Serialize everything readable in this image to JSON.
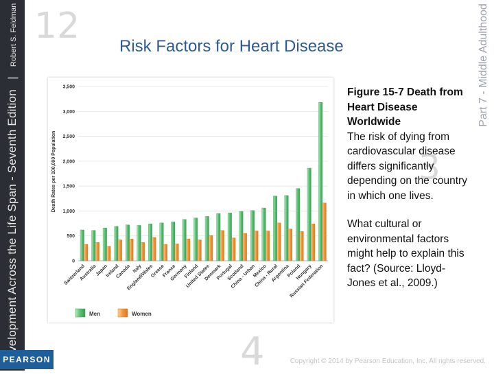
{
  "book": {
    "title": "Development Across the Life Span - Seventh Edition",
    "author": "Robert S. Feldman",
    "part": "Part 7 - Middle Adulthood",
    "publisher": "PEARSON"
  },
  "slide": {
    "title": "Risk Factors for Heart Disease",
    "figure_title": "Figure 15-7 Death from Heart Disease Worldwide",
    "description": "The risk of dying from cardiovascular disease differs significantly depending on the country in which one lives.",
    "question": "What cultural or environmental factors might help to explain this fact? (Source: Lloyd-Jones et al., 2009.)",
    "copyright": "Copyright © 2014 by Pearson Education, Inc. All rights reserved."
  },
  "decor": {
    "numbers": [
      "12",
      "4",
      "3"
    ]
  },
  "colors": {
    "men": "#5cc476",
    "women": "#f39a3c",
    "title": "#2f5b93"
  },
  "chart_data": {
    "type": "bar",
    "title": "",
    "ylabel": "Death Rates per 100,000 Population",
    "xlabel": "",
    "ylim": [
      0,
      3500
    ],
    "yticks": [
      0,
      500,
      1000,
      1500,
      2000,
      2500,
      3000,
      3500
    ],
    "ytick_labels": [
      "0",
      "500",
      "1,000",
      "1,500",
      "2,000",
      "2,500",
      "3,000",
      "3,500"
    ],
    "legend": {
      "position": "bottom"
    },
    "categories": [
      "Switzerland",
      "Australia",
      "Japan",
      "Ireland",
      "Canada",
      "Italy",
      "England/Wales",
      "Greece",
      "France",
      "Germany",
      "Finland",
      "United States",
      "Denmark",
      "Portugal",
      "Scotland",
      "China - Urban",
      "Mexico",
      "China - Rural",
      "Argentina",
      "Poland",
      "Hungary",
      "Russian Federation"
    ],
    "series": [
      {
        "name": "Men",
        "values": [
          620,
          610,
          660,
          690,
          720,
          710,
          740,
          760,
          780,
          830,
          860,
          890,
          950,
          960,
          990,
          1010,
          1060,
          1300,
          1310,
          1450,
          1860,
          3180
        ]
      },
      {
        "name": "Women",
        "values": [
          330,
          370,
          290,
          420,
          440,
          370,
          470,
          330,
          340,
          440,
          420,
          510,
          610,
          460,
          550,
          600,
          600,
          760,
          640,
          590,
          740,
          1160
        ]
      }
    ]
  }
}
